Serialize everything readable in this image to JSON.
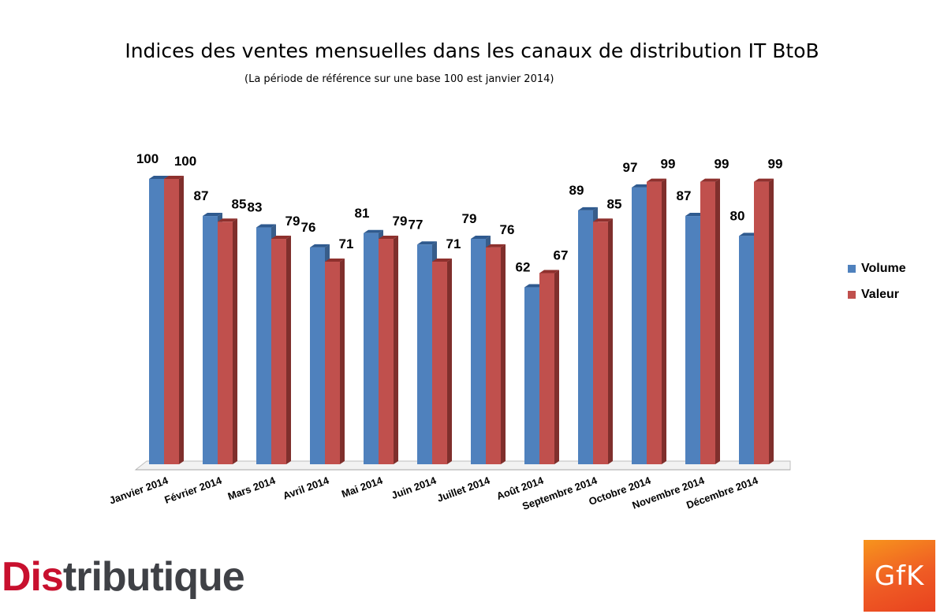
{
  "chart_data": {
    "type": "bar",
    "title": "Indices des ventes mensuelles dans les canaux de distribution IT BtoB",
    "subtitle": "(La période de référence sur une base 100 est janvier 2014)",
    "categories": [
      "Janvier 2014",
      "Février 2014",
      "Mars 2014",
      "Avril 2014",
      "Mai 2014",
      "Juin 2014",
      "Juillet 2014",
      "Août 2014",
      "Septembre 2014",
      "Octobre 2014",
      "Novembre 2014",
      "Décembre 2014"
    ],
    "series": [
      {
        "name": "Volume",
        "color": "#4f81bd",
        "values": [
          100,
          87,
          83,
          76,
          81,
          77,
          79,
          62,
          89,
          97,
          87,
          80
        ]
      },
      {
        "name": "Valeur",
        "color": "#c0504d",
        "values": [
          100,
          85,
          79,
          71,
          79,
          71,
          76,
          67,
          85,
          99,
          99,
          99
        ]
      }
    ],
    "ylim": [
      0,
      100
    ],
    "grid": false,
    "legend_position": "right",
    "data_labels": true,
    "style": "3d-clustered-column"
  },
  "logos": {
    "distributique": {
      "prefix": "Dis",
      "rest": "tributique"
    },
    "gfk": "GfK"
  }
}
